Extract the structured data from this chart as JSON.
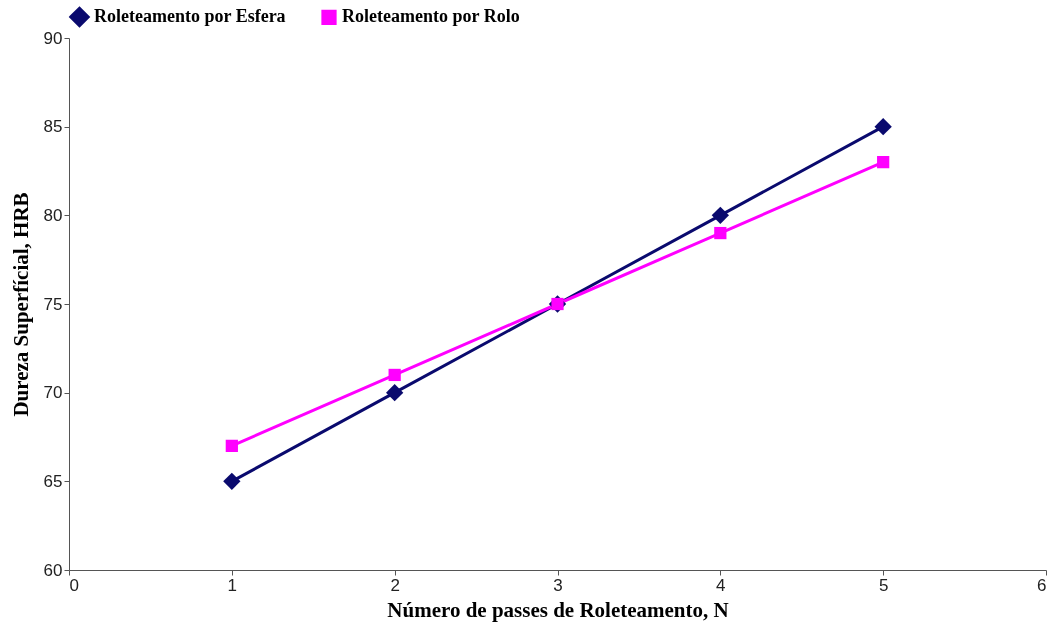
{
  "chart_data": {
    "type": "line",
    "xlabel": "Número de passes de Roleteamento, N",
    "ylabel": "Dureza Superfícial, HRB",
    "x": [
      1,
      2,
      3,
      4,
      5
    ],
    "series": [
      {
        "name": "Roleteamento por Esfera",
        "color": "#0a0a6e",
        "marker": "diamond",
        "values": [
          65,
          70,
          75,
          80,
          85
        ]
      },
      {
        "name": "Roleteamento por Rolo",
        "color": "#ff00ff",
        "marker": "square",
        "values": [
          67,
          71,
          75,
          79,
          83
        ]
      }
    ],
    "xlim": [
      0,
      6
    ],
    "xticks": [
      0,
      1,
      2,
      3,
      4,
      5,
      6
    ],
    "ylim": [
      60,
      90
    ],
    "yticks": [
      60,
      65,
      70,
      75,
      80,
      85,
      90
    ],
    "grid": false,
    "legend": "top",
    "line_style": "solid"
  }
}
